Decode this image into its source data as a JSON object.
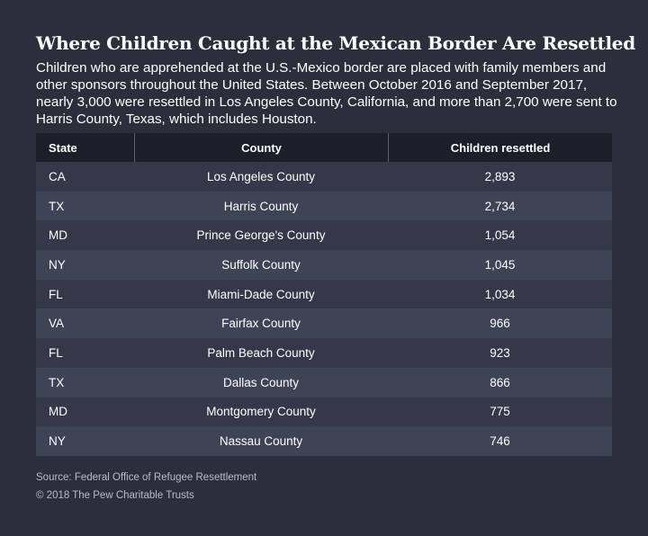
{
  "title": "Where Children Caught at the Mexican Border Are Resettled",
  "subtitle": "Children who are apprehended at the U.S.-Mexico border are placed with family members and other sponsors throughout the United States. Between October 2016 and September 2017, nearly 3,000 were resettled in Los Angeles County, California, and more than 2,700 were sent to Harris County, Texas, which includes Houston.",
  "source": "Source: Federal Office of Refugee Resettlement",
  "copyright": "© 2018 The Pew Charitable Trusts",
  "colors": {
    "background": "#2b2e3b",
    "header": "#1c1f29",
    "row_odd": "#343849",
    "row_even": "#3e4356"
  },
  "chart_data": {
    "type": "table",
    "columns": [
      "State",
      "County",
      "Children resettled"
    ],
    "rows": [
      [
        "CA",
        "Los Angeles County",
        "2,893"
      ],
      [
        "TX",
        "Harris County",
        "2,734"
      ],
      [
        "MD",
        "Prince George's County",
        "1,054"
      ],
      [
        "NY",
        "Suffolk County",
        "1,045"
      ],
      [
        "FL",
        "Miami-Dade County",
        "1,034"
      ],
      [
        "VA",
        "Fairfax County",
        "966"
      ],
      [
        "FL",
        "Palm Beach County",
        "923"
      ],
      [
        "TX",
        "Dallas County",
        "866"
      ],
      [
        "MD",
        "Montgomery County",
        "775"
      ],
      [
        "NY",
        "Nassau County",
        "746"
      ]
    ]
  }
}
